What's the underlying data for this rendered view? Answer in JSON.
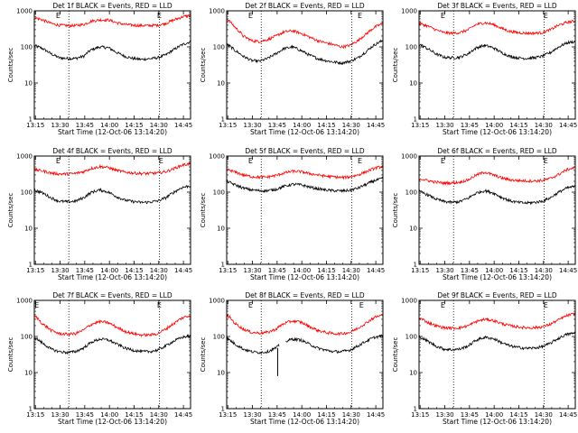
{
  "colors": {
    "events": "#000000",
    "lld": "#ff0000",
    "axes": "#000000",
    "background": "#ffffff"
  },
  "chart_data": [
    {
      "type": "line",
      "title": "Det 1f BLACK = Events, RED = LLD",
      "xlabel": "Start Time (12-Oct-06 13:14:20)",
      "ylabel": "Counts/sec",
      "xticks": [
        "13:15",
        "13:30",
        "13:45",
        "14:00",
        "14:15",
        "14:30",
        "14:45"
      ],
      "yticks": [
        "1",
        "10",
        "100",
        "1000"
      ],
      "ylim": [
        1,
        1000
      ],
      "yscale": "log",
      "xlim_minutes": [
        0,
        95
      ],
      "markers": [
        {
          "label": "E",
          "x": 14.5
        },
        {
          "label": "E",
          "x": 76
        }
      ],
      "x": [
        0,
        5,
        10,
        15,
        20,
        25,
        30,
        35,
        40,
        45,
        50,
        55,
        60,
        65,
        70,
        75,
        80,
        85,
        90,
        95
      ],
      "series": [
        {
          "name": "Events",
          "color": "#000000",
          "values": [
            110,
            90,
            65,
            50,
            48,
            48,
            55,
            85,
            100,
            95,
            70,
            55,
            48,
            45,
            47,
            50,
            60,
            85,
            115,
            140
          ]
        },
        {
          "name": "LLD",
          "color": "#ff0000",
          "values": [
            650,
            560,
            450,
            400,
            390,
            390,
            420,
            520,
            560,
            560,
            470,
            420,
            400,
            390,
            390,
            400,
            450,
            560,
            680,
            750
          ]
        }
      ]
    },
    {
      "type": "line",
      "title": "Det 2f BLACK = Events, RED = LLD",
      "xlabel": "Start Time (12-Oct-06 13:14:20)",
      "ylabel": "Counts/sec",
      "xticks": [
        "13:15",
        "13:30",
        "13:45",
        "14:00",
        "14:15",
        "14:30",
        "14:45"
      ],
      "yticks": [
        "1",
        "10",
        "100",
        "1000"
      ],
      "ylim": [
        1,
        1000
      ],
      "yscale": "log",
      "xlim_minutes": [
        0,
        95
      ],
      "markers": [
        {
          "label": "E",
          "x": 14.5
        },
        {
          "label": "E",
          "x": 81
        }
      ],
      "x": [
        0,
        5,
        10,
        15,
        20,
        25,
        30,
        35,
        40,
        45,
        50,
        55,
        60,
        65,
        70,
        75,
        80,
        85,
        90,
        95
      ],
      "series": [
        {
          "name": "Events",
          "color": "#000000",
          "values": [
            120,
            80,
            55,
            42,
            40,
            48,
            65,
            90,
            100,
            80,
            60,
            48,
            42,
            38,
            36,
            40,
            50,
            75,
            115,
            150
          ]
        },
        {
          "name": "LLD",
          "color": "#ff0000",
          "values": [
            600,
            350,
            200,
            150,
            140,
            160,
            200,
            260,
            280,
            240,
            190,
            150,
            130,
            115,
            100,
            110,
            150,
            230,
            350,
            450
          ]
        }
      ]
    },
    {
      "type": "line",
      "title": "Det 3f BLACK = Events, RED = LLD",
      "xlabel": "Start Time (12-Oct-06 13:14:20)",
      "ylabel": "Counts/sec",
      "xticks": [
        "13:15",
        "13:30",
        "13:45",
        "14:00",
        "14:15",
        "14:30",
        "14:45"
      ],
      "yticks": [
        "1",
        "10",
        "100",
        "1000"
      ],
      "ylim": [
        1,
        1000
      ],
      "yscale": "log",
      "xlim_minutes": [
        0,
        95
      ],
      "markers": [
        {
          "label": "E",
          "x": 14.5
        },
        {
          "label": "E",
          "x": 77
        }
      ],
      "x": [
        0,
        5,
        10,
        15,
        20,
        25,
        30,
        35,
        40,
        45,
        50,
        55,
        60,
        65,
        70,
        75,
        80,
        85,
        90,
        95
      ],
      "series": [
        {
          "name": "Events",
          "color": "#000000",
          "values": [
            120,
            90,
            65,
            52,
            50,
            52,
            65,
            95,
            110,
            95,
            70,
            55,
            50,
            48,
            50,
            55,
            70,
            100,
            130,
            140
          ]
        },
        {
          "name": "LLD",
          "color": "#ff0000",
          "values": [
            450,
            380,
            300,
            250,
            240,
            250,
            300,
            420,
            470,
            420,
            330,
            270,
            250,
            240,
            240,
            250,
            300,
            400,
            480,
            520
          ]
        }
      ]
    },
    {
      "type": "line",
      "title": "Det 4f BLACK = Events, RED = LLD",
      "xlabel": "Start Time (12-Oct-06 13:14:20)",
      "ylabel": "Counts/sec",
      "xticks": [
        "13:15",
        "13:30",
        "13:45",
        "14:00",
        "14:15",
        "14:30",
        "14:45"
      ],
      "yticks": [
        "1",
        "10",
        "100",
        "1000"
      ],
      "ylim": [
        1,
        1000
      ],
      "yscale": "log",
      "xlim_minutes": [
        0,
        95
      ],
      "markers": [
        {
          "label": "E",
          "x": 14.5
        },
        {
          "label": "E",
          "x": 77
        }
      ],
      "x": [
        0,
        5,
        10,
        15,
        20,
        25,
        30,
        35,
        40,
        45,
        50,
        55,
        60,
        65,
        70,
        75,
        80,
        85,
        90,
        95
      ],
      "series": [
        {
          "name": "Events",
          "color": "#000000",
          "values": [
            115,
            95,
            70,
            56,
            54,
            56,
            70,
            100,
            115,
            100,
            75,
            60,
            55,
            52,
            53,
            57,
            70,
            100,
            135,
            150
          ]
        },
        {
          "name": "LLD",
          "color": "#ff0000",
          "values": [
            420,
            390,
            340,
            320,
            320,
            330,
            370,
            460,
            510,
            480,
            400,
            360,
            340,
            330,
            330,
            340,
            370,
            450,
            560,
            620
          ]
        }
      ]
    },
    {
      "type": "line",
      "title": "Det 5f BLACK = Events, RED = LLD",
      "xlabel": "Start Time (12-Oct-06 13:14:20)",
      "ylabel": "Counts/sec",
      "xticks": [
        "13:15",
        "13:30",
        "13:45",
        "14:00",
        "14:15",
        "14:30",
        "14:45"
      ],
      "yticks": [
        "1",
        "10",
        "100",
        "1000"
      ],
      "ylim": [
        1,
        1000
      ],
      "yscale": "log",
      "xlim_minutes": [
        0,
        95
      ],
      "markers": [
        {
          "label": "E",
          "x": 14.5
        },
        {
          "label": "E",
          "x": 81
        }
      ],
      "x": [
        0,
        5,
        10,
        15,
        20,
        25,
        30,
        35,
        40,
        45,
        50,
        55,
        60,
        65,
        70,
        75,
        80,
        85,
        90,
        95
      ],
      "series": [
        {
          "name": "Events",
          "color": "#000000",
          "values": [
            200,
            160,
            130,
            115,
            110,
            110,
            120,
            145,
            165,
            160,
            140,
            125,
            115,
            110,
            108,
            112,
            130,
            165,
            210,
            240
          ]
        },
        {
          "name": "LLD",
          "color": "#ff0000",
          "values": [
            430,
            360,
            300,
            270,
            260,
            265,
            290,
            340,
            380,
            370,
            330,
            300,
            280,
            265,
            255,
            265,
            300,
            370,
            460,
            520
          ]
        }
      ]
    },
    {
      "type": "line",
      "title": "Det 6f BLACK = Events, RED = LLD",
      "xlabel": "Start Time (12-Oct-06 13:14:20)",
      "ylabel": "Counts/sec",
      "xticks": [
        "13:15",
        "13:30",
        "13:45",
        "14:00",
        "14:15",
        "14:30",
        "14:45"
      ],
      "yticks": [
        "1",
        "10",
        "100",
        "1000"
      ],
      "ylim": [
        1,
        1000
      ],
      "yscale": "log",
      "xlim_minutes": [
        0,
        95
      ],
      "markers": [
        {
          "label": "E",
          "x": 14.5
        },
        {
          "label": "E",
          "x": 77
        }
      ],
      "x": [
        0,
        5,
        10,
        15,
        20,
        25,
        30,
        35,
        40,
        45,
        50,
        55,
        60,
        65,
        70,
        75,
        80,
        85,
        90,
        95
      ],
      "series": [
        {
          "name": "Events",
          "color": "#000000",
          "values": [
            105,
            85,
            65,
            55,
            52,
            55,
            68,
            95,
            110,
            95,
            72,
            58,
            52,
            50,
            52,
            56,
            70,
            100,
            130,
            145
          ]
        },
        {
          "name": "LLD",
          "color": "#ff0000",
          "values": [
            240,
            210,
            190,
            180,
            180,
            190,
            220,
            300,
            360,
            300,
            250,
            220,
            210,
            205,
            205,
            210,
            240,
            310,
            420,
            480
          ]
        }
      ]
    },
    {
      "type": "line",
      "title": "Det 7f BLACK = Events, RED = LLD",
      "xlabel": "Start Time (12-Oct-06 13:14:20)",
      "ylabel": "Counts/sec",
      "xticks": [
        "13:15",
        "13:30",
        "13:45",
        "14:00",
        "14:15",
        "14:30",
        "14:45"
      ],
      "yticks": [
        "1",
        "10",
        "100",
        "1000"
      ],
      "ylim": [
        1,
        1000
      ],
      "yscale": "log",
      "xlim_minutes": [
        0,
        95
      ],
      "markers": [
        {
          "label": "E",
          "x": 1.5
        },
        {
          "label": "E",
          "x": 76
        }
      ],
      "x": [
        0,
        5,
        10,
        15,
        20,
        25,
        30,
        35,
        40,
        45,
        50,
        55,
        60,
        65,
        70,
        75,
        80,
        85,
        90,
        95
      ],
      "series": [
        {
          "name": "Events",
          "color": "#000000",
          "values": [
            95,
            65,
            45,
            38,
            36,
            38,
            48,
            70,
            85,
            80,
            62,
            48,
            42,
            38,
            38,
            42,
            55,
            75,
            95,
            105
          ]
        },
        {
          "name": "LLD",
          "color": "#ff0000",
          "values": [
            380,
            220,
            150,
            120,
            115,
            120,
            150,
            220,
            260,
            240,
            180,
            140,
            120,
            110,
            110,
            120,
            160,
            230,
            330,
            380
          ]
        }
      ]
    },
    {
      "type": "line",
      "title": "Det 8f BLACK = Events, RED = LLD",
      "xlabel": "Start Time (12-Oct-06 13:14:20)",
      "ylabel": "Counts/sec",
      "xticks": [
        "13:15",
        "13:30",
        "13:45",
        "14:00",
        "14:15",
        "14:30",
        "14:45"
      ],
      "yticks": [
        "1",
        "10",
        "100",
        "1000"
      ],
      "ylim": [
        1,
        1000
      ],
      "yscale": "log",
      "xlim_minutes": [
        0,
        95
      ],
      "markers": [
        {
          "label": "E",
          "x": 14.5
        },
        {
          "label": "E",
          "x": 82
        }
      ],
      "x": [
        0,
        5,
        10,
        15,
        20,
        25,
        30,
        35,
        40,
        45,
        50,
        55,
        60,
        65,
        70,
        75,
        80,
        85,
        90,
        95
      ],
      "series": [
        {
          "name": "Events",
          "color": "#000000",
          "values": [
            90,
            62,
            45,
            38,
            36,
            38,
            48,
            70,
            85,
            80,
            62,
            48,
            42,
            38,
            38,
            42,
            55,
            75,
            95,
            105
          ]
        },
        {
          "name": "LLD",
          "color": "#ff0000",
          "values": [
            400,
            230,
            160,
            130,
            125,
            130,
            160,
            230,
            270,
            250,
            190,
            150,
            130,
            120,
            120,
            130,
            170,
            240,
            340,
            400
          ]
        }
      ],
      "gap_minutes": [
        32,
        36
      ],
      "spike": {
        "x_minutes": 31,
        "low": 8
      }
    },
    {
      "type": "line",
      "title": "Det 9f BLACK = Events, RED = LLD",
      "xlabel": "Start Time (12-Oct-06 13:14:20)",
      "ylabel": "Counts/sec",
      "xticks": [
        "13:15",
        "13:30",
        "13:45",
        "14:00",
        "14:15",
        "14:30",
        "14:45"
      ],
      "yticks": [
        "1",
        "10",
        "100",
        "1000"
      ],
      "ylim": [
        1,
        1000
      ],
      "yscale": "log",
      "xlim_minutes": [
        0,
        95
      ],
      "markers": [
        {
          "label": "E",
          "x": 14.5
        },
        {
          "label": "E",
          "x": 77
        }
      ],
      "x": [
        0,
        5,
        10,
        15,
        20,
        25,
        30,
        35,
        40,
        45,
        50,
        55,
        60,
        65,
        70,
        75,
        80,
        85,
        90,
        95
      ],
      "series": [
        {
          "name": "Events",
          "color": "#000000",
          "values": [
            100,
            75,
            55,
            45,
            43,
            45,
            55,
            80,
            95,
            88,
            68,
            55,
            50,
            47,
            48,
            52,
            65,
            90,
            115,
            125
          ]
        },
        {
          "name": "LLD",
          "color": "#ff0000",
          "values": [
            330,
            250,
            200,
            175,
            170,
            175,
            200,
            260,
            300,
            280,
            230,
            200,
            185,
            175,
            175,
            185,
            220,
            290,
            380,
            430
          ]
        }
      ]
    }
  ]
}
